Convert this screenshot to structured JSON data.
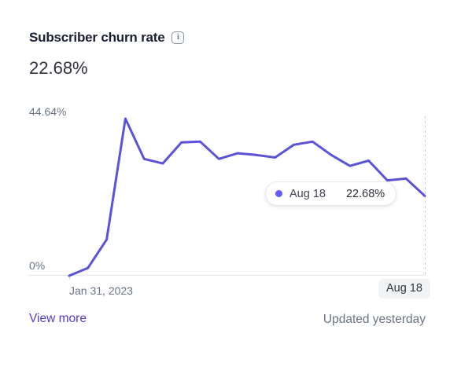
{
  "card": {
    "title": "Subscriber churn rate",
    "current_value": "22.68%",
    "footer": {
      "view_more_label": "View more",
      "updated_text": "Updated yesterday"
    }
  },
  "colors": {
    "line": "#5a52d8",
    "dot": "#635bff",
    "axis_line": "#e3e8ee",
    "tick": "#d5dbe1",
    "cursor_dashed": "#c9cfd8",
    "link": "#4f3dce",
    "muted_text": "#687385",
    "title_text": "#1a1f36"
  },
  "chart_data": {
    "type": "line",
    "title": "Subscriber churn rate",
    "xlabel": "",
    "ylabel": "",
    "ylim": [
      0,
      44.64
    ],
    "ylabel_top": "44.64%",
    "ylabel_bottom": "0%",
    "x_start_label": "Jan 31, 2023",
    "x_end_label": "Aug 18",
    "grid": false,
    "legend_position": "none",
    "values": [
      0,
      2.2,
      10.3,
      44.64,
      33.2,
      31.9,
      37.9,
      38.1,
      33.2,
      34.8,
      34.3,
      33.6,
      37.2,
      38.1,
      34.3,
      31.2,
      32.7,
      27.1,
      27.6,
      22.68
    ],
    "tooltip": {
      "label": "Aug 18",
      "value": "22.68%"
    }
  }
}
